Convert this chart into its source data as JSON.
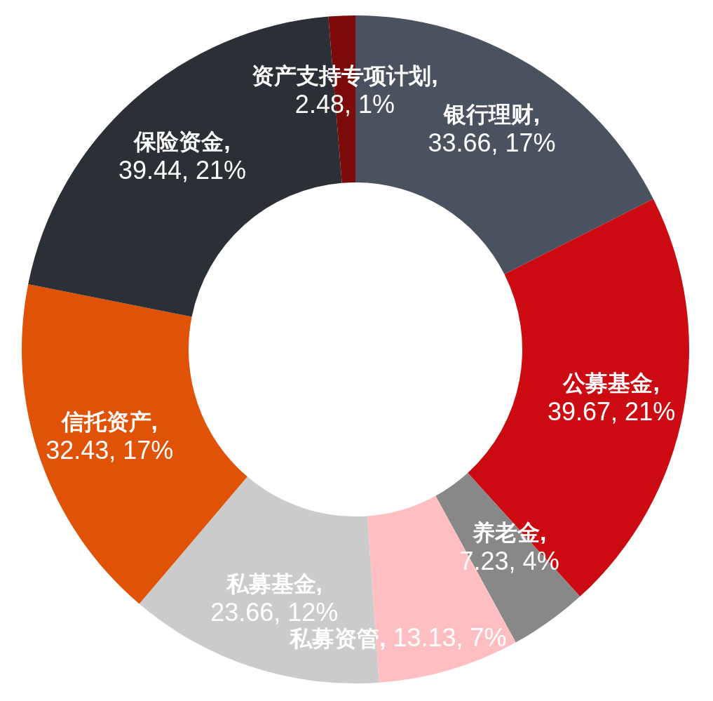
{
  "chart_data": {
    "type": "donut",
    "categories": [
      "银行理财",
      "公募基金",
      "养老金",
      "私募资管",
      "私募基金",
      "信托资产",
      "保险资金",
      "资产支持专项计划"
    ],
    "values": [
      33.66,
      39.67,
      7.23,
      13.13,
      23.66,
      32.43,
      39.44,
      2.48
    ],
    "colors": [
      "#4a5260",
      "#cc0a12",
      "#888888",
      "#ffbfc2",
      "#cbcbcb",
      "#e05206",
      "#2b2f36",
      "#7d0a0a"
    ],
    "value_labels": [
      ", 33.66, 17%",
      ", 39.67, 21%",
      ", 7.23, 4%",
      ", 13.13, 7%",
      ", 23.66, 12%",
      ", 32.43, 17%",
      ", 39.44, 21%",
      ", 2.48, 1%"
    ]
  }
}
